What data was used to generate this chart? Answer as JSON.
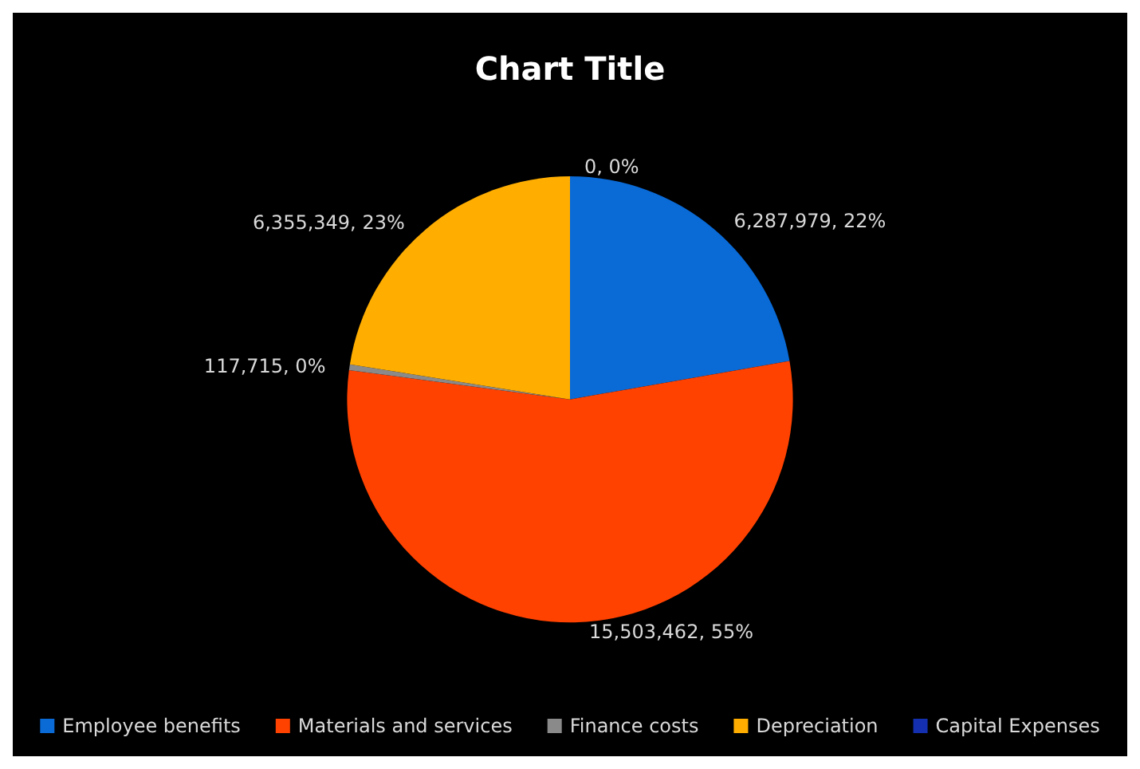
{
  "chart_data": {
    "type": "pie",
    "title": "Chart Title",
    "categories": [
      "Employee benefits",
      "Materials and services",
      "Finance costs",
      "Depreciation",
      "Capital Expenses"
    ],
    "values": [
      6287979,
      15503462,
      117715,
      6355349,
      0
    ],
    "colors": [
      "#0a6ad6",
      "#ff4200",
      "#8a8a8a",
      "#ffae00",
      "#1430b0"
    ],
    "value_labels": [
      "6,287,979, 22%",
      "15,503,462, 55%",
      "117,715, 0%",
      "6,355,349, 23%",
      "0, 0%"
    ],
    "legend": "bottom"
  }
}
